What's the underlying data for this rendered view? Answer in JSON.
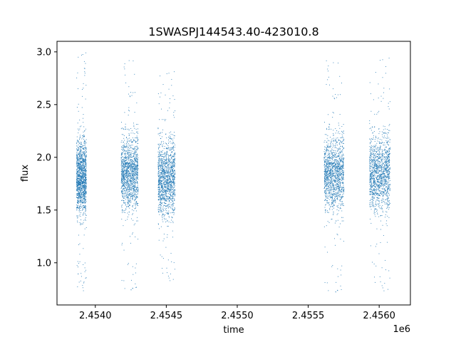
{
  "chart_data": {
    "type": "scatter",
    "title": "1SWASPJ144543.40-423010.8",
    "xlabel": "time",
    "ylabel": "flux",
    "x_offset_label": "1e6",
    "xlim": [
      2453730,
      2456220
    ],
    "ylim": [
      0.6,
      3.1
    ],
    "x_ticks": [
      {
        "value": 2454000,
        "label": "2.4540"
      },
      {
        "value": 2454500,
        "label": "2.4545"
      },
      {
        "value": 2455000,
        "label": "2.4550"
      },
      {
        "value": 2455500,
        "label": "2.4555"
      },
      {
        "value": 2456000,
        "label": "2.4560"
      }
    ],
    "y_ticks": [
      {
        "value": 1.0,
        "label": "1.0"
      },
      {
        "value": 1.5,
        "label": "1.5"
      },
      {
        "value": 2.0,
        "label": "2.0"
      },
      {
        "value": 2.5,
        "label": "2.5"
      },
      {
        "value": 3.0,
        "label": "3.0"
      }
    ],
    "grid": false,
    "marker_color": "#1f77b4",
    "clusters": [
      {
        "x_start": 2453865,
        "x_end": 2453935,
        "median_flux": 1.82,
        "flux_range": [
          0.7,
          3.0
        ]
      },
      {
        "x_start": 2454180,
        "x_end": 2454300,
        "median_flux": 1.85,
        "flux_range": [
          0.72,
          2.99
        ]
      },
      {
        "x_start": 2454440,
        "x_end": 2454560,
        "median_flux": 1.8,
        "flux_range": [
          0.8,
          2.82
        ]
      },
      {
        "x_start": 2455610,
        "x_end": 2455750,
        "median_flux": 1.85,
        "flux_range": [
          0.7,
          2.97
        ]
      },
      {
        "x_start": 2455930,
        "x_end": 2456075,
        "median_flux": 1.85,
        "flux_range": [
          0.7,
          2.95
        ]
      }
    ]
  }
}
